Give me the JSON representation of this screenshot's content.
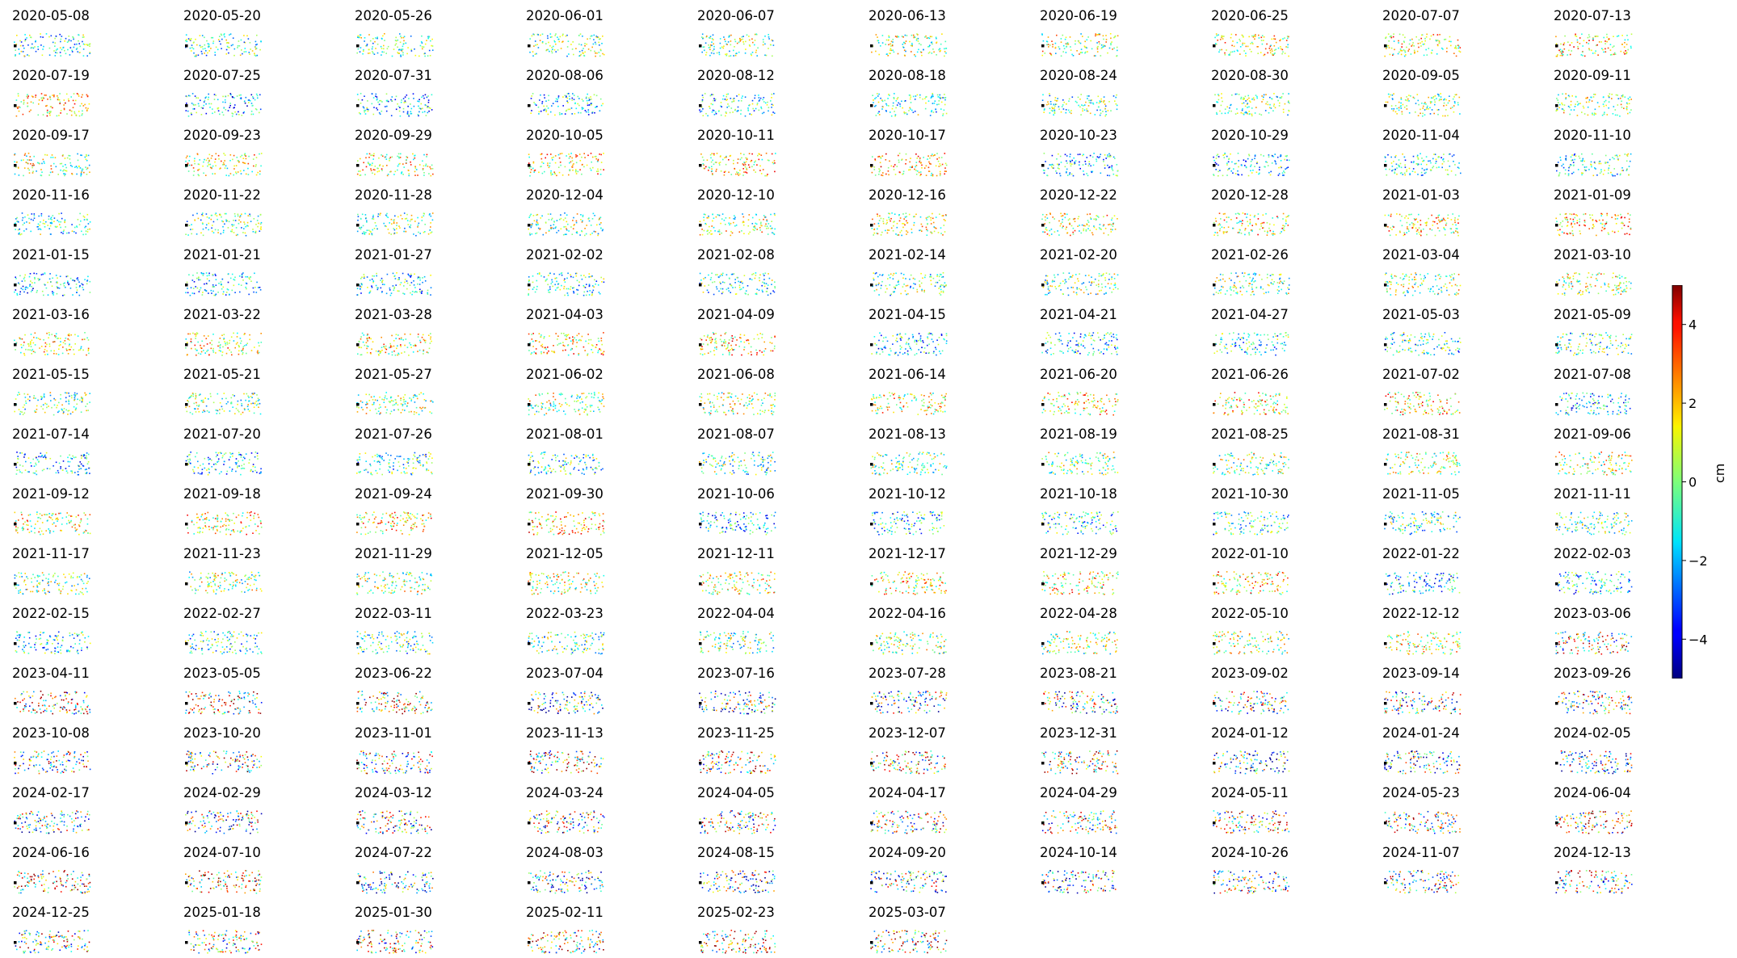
{
  "chart_data": {
    "type": "scatter",
    "subtype": "small-multiples displacement maps",
    "panel_titles": [
      "2020-05-08",
      "2020-05-20",
      "2020-05-26",
      "2020-06-01",
      "2020-06-07",
      "2020-06-13",
      "2020-06-19",
      "2020-06-25",
      "2020-07-07",
      "2020-07-13",
      "2020-07-19",
      "2020-07-25",
      "2020-07-31",
      "2020-08-06",
      "2020-08-12",
      "2020-08-18",
      "2020-08-24",
      "2020-08-30",
      "2020-09-05",
      "2020-09-11",
      "2020-09-17",
      "2020-09-23",
      "2020-09-29",
      "2020-10-05",
      "2020-10-11",
      "2020-10-17",
      "2020-10-23",
      "2020-10-29",
      "2020-11-04",
      "2020-11-10",
      "2020-11-16",
      "2020-11-22",
      "2020-11-28",
      "2020-12-04",
      "2020-12-10",
      "2020-12-16",
      "2020-12-22",
      "2020-12-28",
      "2021-01-03",
      "2021-01-09",
      "2021-01-15",
      "2021-01-21",
      "2021-01-27",
      "2021-02-02",
      "2021-02-08",
      "2021-02-14",
      "2021-02-20",
      "2021-02-26",
      "2021-03-04",
      "2021-03-10",
      "2021-03-16",
      "2021-03-22",
      "2021-03-28",
      "2021-04-03",
      "2021-04-09",
      "2021-04-15",
      "2021-04-21",
      "2021-04-27",
      "2021-05-03",
      "2021-05-09",
      "2021-05-15",
      "2021-05-21",
      "2021-05-27",
      "2021-06-02",
      "2021-06-08",
      "2021-06-14",
      "2021-06-20",
      "2021-06-26",
      "2021-07-02",
      "2021-07-08",
      "2021-07-14",
      "2021-07-20",
      "2021-07-26",
      "2021-08-01",
      "2021-08-07",
      "2021-08-13",
      "2021-08-19",
      "2021-08-25",
      "2021-08-31",
      "2021-09-06",
      "2021-09-12",
      "2021-09-18",
      "2021-09-24",
      "2021-09-30",
      "2021-10-06",
      "2021-10-12",
      "2021-10-18",
      "2021-10-30",
      "2021-11-05",
      "2021-11-11",
      "2021-11-17",
      "2021-11-23",
      "2021-11-29",
      "2021-12-05",
      "2021-12-11",
      "2021-12-17",
      "2021-12-29",
      "2022-01-10",
      "2022-01-22",
      "2022-02-03",
      "2022-02-15",
      "2022-02-27",
      "2022-03-11",
      "2022-03-23",
      "2022-04-04",
      "2022-04-16",
      "2022-04-28",
      "2022-05-10",
      "2022-12-12",
      "2023-03-06",
      "2023-04-11",
      "2023-05-05",
      "2023-06-22",
      "2023-07-04",
      "2023-07-16",
      "2023-07-28",
      "2023-08-21",
      "2023-09-02",
      "2023-09-14",
      "2023-09-26",
      "2023-10-08",
      "2023-10-20",
      "2023-11-01",
      "2023-11-13",
      "2023-11-25",
      "2023-12-07",
      "2023-12-31",
      "2024-01-12",
      "2024-01-24",
      "2024-02-05",
      "2024-02-17",
      "2024-02-29",
      "2024-03-12",
      "2024-03-24",
      "2024-04-05",
      "2024-04-17",
      "2024-04-29",
      "2024-05-11",
      "2024-05-23",
      "2024-06-04",
      "2024-06-16",
      "2024-07-10",
      "2024-07-22",
      "2024-08-03",
      "2024-08-15",
      "2024-09-20",
      "2024-10-14",
      "2024-10-26",
      "2024-11-07",
      "2024-12-13",
      "2024-12-25",
      "2025-01-18",
      "2025-01-30",
      "2025-02-11",
      "2025-02-23",
      "2025-03-07"
    ],
    "grid": {
      "columns": 10,
      "rows": 16
    },
    "colorbar": {
      "label": "cm",
      "range": [
        -5,
        5
      ],
      "ticks": [
        4,
        2,
        0,
        -2,
        -4
      ],
      "tick_labels": [
        "4",
        "2",
        "0",
        "−2",
        "−4"
      ],
      "colormap": "jet"
    },
    "reference_point_color": "#000000"
  }
}
